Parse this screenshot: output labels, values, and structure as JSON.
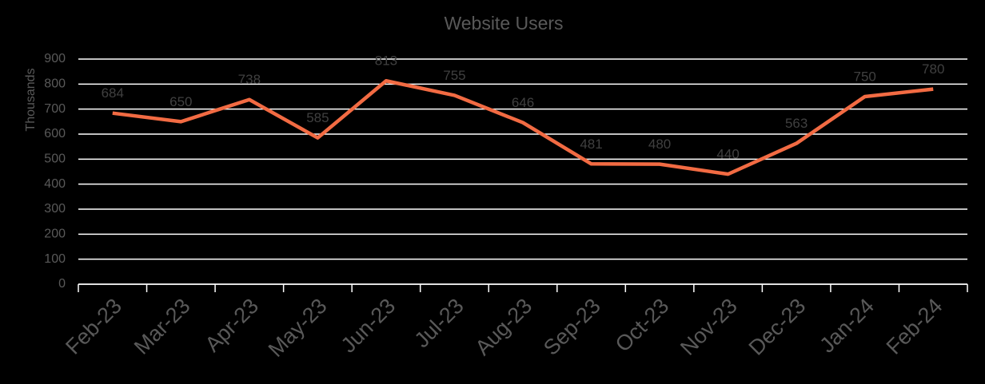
{
  "chart_data": {
    "type": "line",
    "title": "Website Users",
    "y_label": "Thousands",
    "categories": [
      "Feb-23",
      "Mar-23",
      "Apr-23",
      "May-23",
      "Jun-23",
      "Jul-23",
      "Aug-23",
      "Sep-23",
      "Oct-23",
      "Nov-23",
      "Dec-23",
      "Jan-24",
      "Feb-24"
    ],
    "series": [
      {
        "name": "Website Users",
        "color": "#f26b43",
        "values": [
          684,
          650,
          738,
          585,
          813,
          755,
          646,
          481,
          480,
          440,
          563,
          750,
          780
        ]
      }
    ],
    "ylim": [
      0,
      900
    ],
    "yticks": [
      0,
      100,
      200,
      300,
      400,
      500,
      600,
      700,
      800,
      900
    ],
    "grid": true,
    "data_labels": true
  }
}
